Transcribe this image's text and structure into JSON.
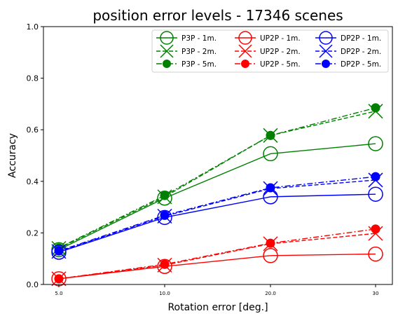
{
  "chart_data": {
    "type": "line",
    "title": "position error levels - 17346 scenes",
    "xlabel": "Rotation error [deg.]",
    "ylabel": "Accuracy",
    "categories": [
      "5.0",
      "10.0",
      "20.0",
      "30"
    ],
    "ylim": [
      0.0,
      1.0
    ],
    "yticks": [
      "0.0",
      "0.2",
      "0.4",
      "0.6",
      "0.8",
      "1.0"
    ],
    "grid": false,
    "legend_position": "top-right",
    "legend_columns": 3,
    "colors": {
      "green": "#008000",
      "red": "#ff0000",
      "blue": "#0000ff"
    },
    "series": [
      {
        "name": "P3P - 1m.",
        "color": "#008000",
        "marker": "circle-open",
        "dash": "solid",
        "values": [
          0.135,
          0.335,
          0.507,
          0.546
        ]
      },
      {
        "name": "P3P - 2m.",
        "color": "#008000",
        "marker": "x",
        "dash": "dashed",
        "values": [
          0.14,
          0.34,
          0.578,
          0.672
        ]
      },
      {
        "name": "P3P - 5m.",
        "color": "#008000",
        "marker": "dot",
        "dash": "dashdot",
        "values": [
          0.142,
          0.345,
          0.578,
          0.685
        ]
      },
      {
        "name": "UP2P - 1m.",
        "color": "#ff0000",
        "marker": "circle-open",
        "dash": "solid",
        "values": [
          0.022,
          0.07,
          0.112,
          0.118
        ]
      },
      {
        "name": "UP2P - 2m.",
        "color": "#ff0000",
        "marker": "x",
        "dash": "dashed",
        "values": [
          0.022,
          0.075,
          0.158,
          0.198
        ]
      },
      {
        "name": "UP2P - 5m.",
        "color": "#ff0000",
        "marker": "dot",
        "dash": "dashdot",
        "values": [
          0.022,
          0.078,
          0.16,
          0.215
        ]
      },
      {
        "name": "DP2P - 1m.",
        "color": "#0000ff",
        "marker": "circle-open",
        "dash": "solid",
        "values": [
          0.125,
          0.26,
          0.34,
          0.35
        ]
      },
      {
        "name": "DP2P - 2m.",
        "color": "#0000ff",
        "marker": "x",
        "dash": "dashed",
        "values": [
          0.128,
          0.265,
          0.372,
          0.405
        ]
      },
      {
        "name": "DP2P - 5m.",
        "color": "#0000ff",
        "marker": "dot",
        "dash": "dashdot",
        "values": [
          0.13,
          0.268,
          0.375,
          0.418
        ]
      }
    ]
  }
}
